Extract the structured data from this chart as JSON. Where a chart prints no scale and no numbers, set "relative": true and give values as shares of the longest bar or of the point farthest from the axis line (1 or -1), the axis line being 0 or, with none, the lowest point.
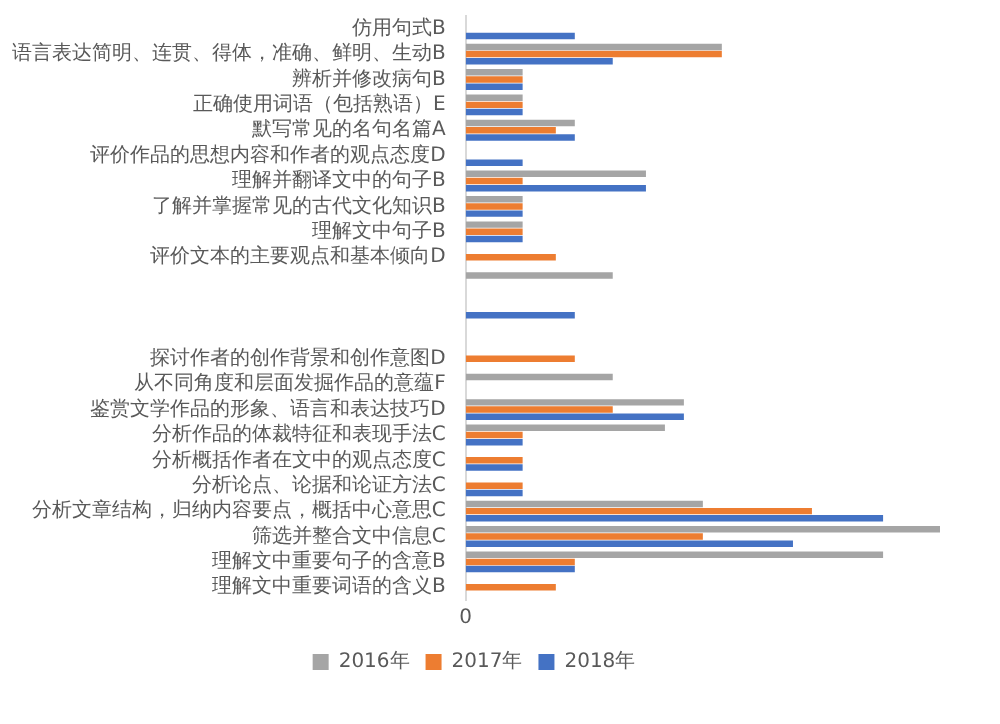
{
  "chart_data": {
    "type": "bar",
    "orientation": "horizontal",
    "relative": true,
    "legend": "bottom",
    "categories": [
      "仿用句式B",
      "语言表达简明、连贯、得体，准确、鲜明、生动B",
      "辨析并修改病句B",
      "正确使用词语（包括熟语）E",
      "默写常见的名句名篇A",
      "评价作品的思想内容和作者的观点态度D",
      "理解并翻译文中的句子B",
      "了解并掌握常见的古代文化知识B",
      "理解文中句子B",
      "评价文本的主要观点和基本倾向D",
      null,
      null,
      null,
      "探讨作者的创作背景和创作意图D",
      "从不同角度和层面发掘作品的意蕴F",
      "鉴赏文学作品的形象、语言和表达技巧D",
      "分析作品的体裁特征和表现手法C",
      "分析概括作者在文中的观点态度C",
      "分析论点、论据和论证方法C",
      "分析文章结构，归纳内容要点，概括中心意思C",
      "筛选并整合文中信息C",
      "理解文中重要句子的含意B",
      "理解文中重要词语的含义B"
    ],
    "series": [
      {
        "name": "2016年",
        "color": "#a5a5a5",
        "values": [
          null,
          0.54,
          0.12,
          0.12,
          0.23,
          null,
          0.38,
          0.12,
          0.12,
          null,
          0.31,
          null,
          null,
          null,
          0.31,
          0.46,
          0.42,
          null,
          null,
          0.5,
          1,
          0.88,
          null
        ]
      },
      {
        "name": "2017年",
        "color": "#ed7d31",
        "values": [
          null,
          0.54,
          0.12,
          0.12,
          0.19,
          null,
          0.12,
          0.12,
          0.12,
          0.19,
          null,
          null,
          null,
          0.23,
          null,
          0.31,
          0.12,
          0.12,
          0.12,
          0.73,
          0.5,
          0.23,
          0.19
        ]
      },
      {
        "name": "2018年",
        "color": "#4472c4",
        "values": [
          0.23,
          0.31,
          0.12,
          0.12,
          0.23,
          0.12,
          0.38,
          0.12,
          0.12,
          null,
          null,
          0.23,
          null,
          null,
          null,
          0.46,
          0.12,
          0.12,
          0.12,
          0.88,
          0.69,
          0.23,
          null
        ]
      }
    ],
    "annotations": [
      "0"
    ]
  }
}
